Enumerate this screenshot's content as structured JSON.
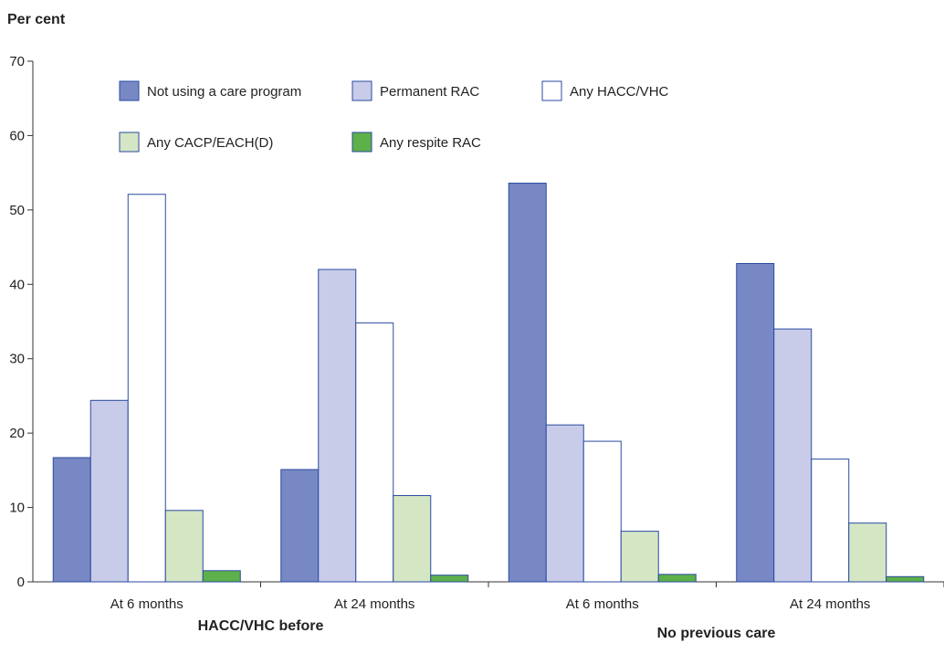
{
  "chart_data": {
    "type": "bar",
    "ylabel": "Per cent",
    "ylim": [
      0,
      70
    ],
    "yticks": [
      0,
      10,
      20,
      30,
      40,
      50,
      60,
      70
    ],
    "grid": false,
    "legend_position": "top",
    "categories": [
      "At 6 months",
      "At 24 months",
      "At 6 months",
      "At 24 months"
    ],
    "groups": [
      {
        "label": "HACC/VHC before",
        "categories": [
          0,
          1
        ]
      },
      {
        "label": "No previous care",
        "categories": [
          2,
          3
        ]
      }
    ],
    "series": [
      {
        "name": "Not using a care program",
        "color": "#7788c4",
        "values": [
          16.7,
          15.1,
          53.6,
          42.8
        ]
      },
      {
        "name": "Permanent RAC",
        "color": "#c8cce8",
        "values": [
          24.4,
          42.0,
          21.1,
          34.0
        ]
      },
      {
        "name": "Any HACC/VHC",
        "color": "#ffffff",
        "values": [
          52.1,
          34.8,
          18.9,
          16.5
        ]
      },
      {
        "name": "Any CACP/EACH(D)",
        "color": "#d4e6c4",
        "values": [
          9.6,
          11.6,
          6.8,
          7.9
        ]
      },
      {
        "name": "Any respite RAC",
        "color": "#5db04a",
        "values": [
          1.5,
          0.9,
          1.0,
          0.7
        ]
      }
    ]
  }
}
